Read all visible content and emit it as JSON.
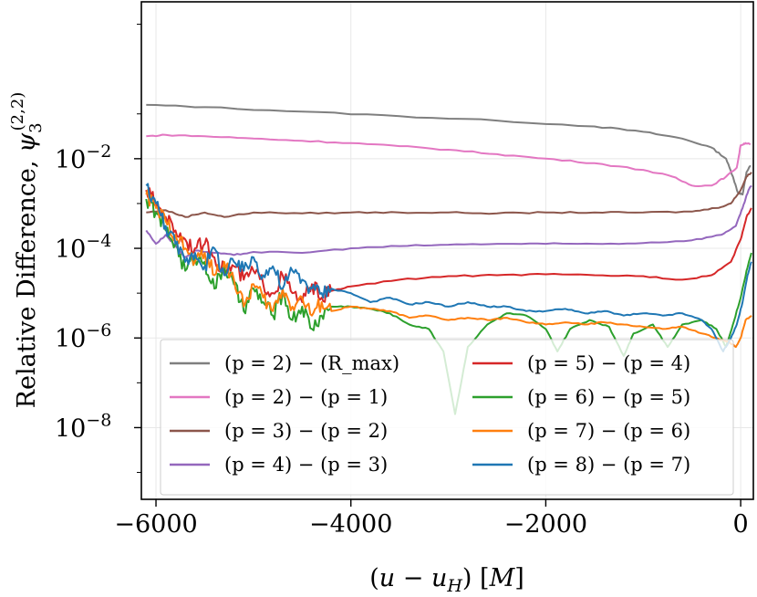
{
  "chart_data": {
    "type": "line",
    "title": "",
    "xlabel": "(u − u_H) [M]",
    "ylabel": "Relative Difference, ψ₃^(2,2)",
    "xlim": [
      -6150,
      130
    ],
    "ylim_log10": [
      -9.6,
      1.5
    ],
    "yscale": "log",
    "grid": true,
    "legend_position": "lower-center",
    "legend_columns": 2,
    "x_ticks": [
      {
        "value": -6000,
        "label": "−6000"
      },
      {
        "value": -4000,
        "label": "−4000"
      },
      {
        "value": -2000,
        "label": "−2000"
      },
      {
        "value": 0,
        "label": "0"
      }
    ],
    "y_ticks": [
      {
        "exp": -2,
        "base": "10",
        "sup": "−2"
      },
      {
        "exp": -4,
        "base": "10",
        "sup": "−4"
      },
      {
        "exp": -6,
        "base": "10",
        "sup": "−6"
      },
      {
        "exp": -8,
        "base": "10",
        "sup": "−8"
      }
    ],
    "series": [
      {
        "name": "(p = 2) − (R_max)",
        "color": "#7f7f7f",
        "points": [
          [
            -6100,
            -0.8
          ],
          [
            -5500,
            -0.85
          ],
          [
            -4500,
            -0.95
          ],
          [
            -3500,
            -1.05
          ],
          [
            -2500,
            -1.15
          ],
          [
            -1500,
            -1.28
          ],
          [
            -1000,
            -1.4
          ],
          [
            -600,
            -1.55
          ],
          [
            -300,
            -1.75
          ],
          [
            -150,
            -2.0
          ],
          [
            -80,
            -2.4
          ],
          [
            -30,
            -2.75
          ],
          [
            20,
            -2.8
          ],
          [
            60,
            -2.3
          ],
          [
            100,
            -2.15
          ]
        ]
      },
      {
        "name": "(p = 2) − (p = 1)",
        "color": "#e377c2",
        "points": [
          [
            -6100,
            -1.5
          ],
          [
            -5900,
            -1.47
          ],
          [
            -5500,
            -1.5
          ],
          [
            -5000,
            -1.55
          ],
          [
            -4500,
            -1.6
          ],
          [
            -4000,
            -1.65
          ],
          [
            -3500,
            -1.72
          ],
          [
            -3000,
            -1.8
          ],
          [
            -2500,
            -1.9
          ],
          [
            -2000,
            -2.0
          ],
          [
            -1500,
            -2.1
          ],
          [
            -1000,
            -2.25
          ],
          [
            -700,
            -2.4
          ],
          [
            -500,
            -2.6
          ],
          [
            -300,
            -2.6
          ],
          [
            -150,
            -2.4
          ],
          [
            -40,
            -2.2
          ],
          [
            0,
            -1.7
          ],
          [
            50,
            -1.65
          ],
          [
            100,
            -1.68
          ]
        ]
      },
      {
        "name": "(p = 3) − (p = 2)",
        "color": "#8c564b",
        "points": [
          [
            -6100,
            -3.2
          ],
          [
            -5900,
            -3.15
          ],
          [
            -5700,
            -3.3
          ],
          [
            -5500,
            -3.2
          ],
          [
            -5300,
            -3.3
          ],
          [
            -5000,
            -3.2
          ],
          [
            -4500,
            -3.22
          ],
          [
            -4000,
            -3.2
          ],
          [
            -3500,
            -3.2
          ],
          [
            -3000,
            -3.2
          ],
          [
            -2500,
            -3.22
          ],
          [
            -2000,
            -3.2
          ],
          [
            -1500,
            -3.2
          ],
          [
            -1000,
            -3.2
          ],
          [
            -500,
            -3.18
          ],
          [
            -250,
            -3.1
          ],
          [
            -100,
            -3.0
          ],
          [
            0,
            -2.7
          ],
          [
            60,
            -2.4
          ],
          [
            110,
            -2.3
          ]
        ]
      },
      {
        "name": "(p = 4) − (p = 3)",
        "color": "#9467bd",
        "points": [
          [
            -6100,
            -3.6
          ],
          [
            -6000,
            -3.9
          ],
          [
            -5900,
            -3.7
          ],
          [
            -5800,
            -3.95
          ],
          [
            -5700,
            -4.2
          ],
          [
            -5600,
            -4.05
          ],
          [
            -5400,
            -4.1
          ],
          [
            -5200,
            -4.15
          ],
          [
            -5000,
            -4.08
          ],
          [
            -4500,
            -4.1
          ],
          [
            -4000,
            -4.0
          ],
          [
            -3500,
            -3.95
          ],
          [
            -3000,
            -3.92
          ],
          [
            -2500,
            -3.9
          ],
          [
            -2000,
            -3.9
          ],
          [
            -1500,
            -3.9
          ],
          [
            -1000,
            -3.88
          ],
          [
            -500,
            -3.82
          ],
          [
            -200,
            -3.7
          ],
          [
            -50,
            -3.5
          ],
          [
            20,
            -3.1
          ],
          [
            80,
            -2.7
          ],
          [
            110,
            -2.6
          ]
        ]
      },
      {
        "name": "(p = 5) − (p = 4)",
        "color": "#d62728",
        "points": [
          [
            -6100,
            -2.7
          ],
          [
            -6000,
            -3.0
          ],
          [
            -5900,
            -3.3
          ],
          [
            -5800,
            -3.6
          ],
          [
            -5700,
            -3.8
          ],
          [
            -5600,
            -4.0
          ],
          [
            -5500,
            -3.9
          ],
          [
            -5400,
            -4.2
          ],
          [
            -5300,
            -4.5
          ],
          [
            -5200,
            -4.4
          ],
          [
            -5100,
            -4.7
          ],
          [
            -5000,
            -4.5
          ],
          [
            -4900,
            -4.8
          ],
          [
            -4800,
            -5.0
          ],
          [
            -4700,
            -4.6
          ],
          [
            -4600,
            -5.0
          ],
          [
            -4500,
            -5.2
          ],
          [
            -4400,
            -4.8
          ],
          [
            -4300,
            -5.1
          ],
          [
            -4200,
            -4.95
          ],
          [
            -4000,
            -4.85
          ],
          [
            -3500,
            -4.7
          ],
          [
            -3000,
            -4.62
          ],
          [
            -2500,
            -4.6
          ],
          [
            -2000,
            -4.58
          ],
          [
            -1500,
            -4.6
          ],
          [
            -1000,
            -4.62
          ],
          [
            -600,
            -4.7
          ],
          [
            -300,
            -4.6
          ],
          [
            -100,
            -4.3
          ],
          [
            0,
            -3.8
          ],
          [
            60,
            -3.3
          ],
          [
            110,
            -3.1
          ]
        ]
      },
      {
        "name": "(p = 6) − (p = 5)",
        "color": "#2ca02c",
        "points": [
          [
            -6100,
            -2.9
          ],
          [
            -6000,
            -3.2
          ],
          [
            -5900,
            -3.6
          ],
          [
            -5800,
            -3.9
          ],
          [
            -5700,
            -4.5
          ],
          [
            -5600,
            -4.2
          ],
          [
            -5500,
            -4.3
          ],
          [
            -5400,
            -4.9
          ],
          [
            -5300,
            -4.4
          ],
          [
            -5200,
            -4.8
          ],
          [
            -5100,
            -5.4
          ],
          [
            -5000,
            -4.9
          ],
          [
            -4900,
            -5.2
          ],
          [
            -4800,
            -5.5
          ],
          [
            -4700,
            -5.0
          ],
          [
            -4600,
            -5.6
          ],
          [
            -4500,
            -5.3
          ],
          [
            -4400,
            -5.8
          ],
          [
            -4300,
            -5.5
          ],
          [
            -4200,
            -5.3
          ],
          [
            -4000,
            -5.3
          ],
          [
            -3800,
            -5.35
          ],
          [
            -3600,
            -5.45
          ],
          [
            -3400,
            -5.7
          ],
          [
            -3200,
            -5.8
          ],
          [
            -3050,
            -6.3
          ],
          [
            -2930,
            -7.7
          ],
          [
            -2800,
            -6.2
          ],
          [
            -2600,
            -5.7
          ],
          [
            -2400,
            -5.45
          ],
          [
            -2200,
            -5.5
          ],
          [
            -2000,
            -5.8
          ],
          [
            -1880,
            -6.3
          ],
          [
            -1750,
            -5.8
          ],
          [
            -1550,
            -5.6
          ],
          [
            -1350,
            -5.75
          ],
          [
            -1200,
            -6.4
          ],
          [
            -1100,
            -5.9
          ],
          [
            -900,
            -5.7
          ],
          [
            -750,
            -6.2
          ],
          [
            -600,
            -5.7
          ],
          [
            -400,
            -5.6
          ],
          [
            -250,
            -5.8
          ],
          [
            -150,
            -6.2
          ],
          [
            -80,
            -5.7
          ],
          [
            0,
            -5.1
          ],
          [
            60,
            -4.5
          ],
          [
            110,
            -4.1
          ]
        ]
      },
      {
        "name": "(p = 7) − (p = 6)",
        "color": "#ff7f0e",
        "points": [
          [
            -6100,
            -2.8
          ],
          [
            -6000,
            -3.1
          ],
          [
            -5900,
            -3.4
          ],
          [
            -5800,
            -3.7
          ],
          [
            -5700,
            -4.0
          ],
          [
            -5600,
            -4.3
          ],
          [
            -5500,
            -4.1
          ],
          [
            -5400,
            -4.6
          ],
          [
            -5300,
            -4.3
          ],
          [
            -5200,
            -4.7
          ],
          [
            -5100,
            -5.3
          ],
          [
            -5000,
            -4.8
          ],
          [
            -4900,
            -5.1
          ],
          [
            -4800,
            -5.4
          ],
          [
            -4700,
            -4.9
          ],
          [
            -4600,
            -5.3
          ],
          [
            -4500,
            -5.1
          ],
          [
            -4400,
            -5.5
          ],
          [
            -4300,
            -5.2
          ],
          [
            -4200,
            -5.4
          ],
          [
            -4000,
            -5.3
          ],
          [
            -3800,
            -5.35
          ],
          [
            -3600,
            -5.4
          ],
          [
            -3400,
            -5.55
          ],
          [
            -3200,
            -5.5
          ],
          [
            -3000,
            -5.6
          ],
          [
            -2800,
            -5.55
          ],
          [
            -2600,
            -5.6
          ],
          [
            -2400,
            -5.55
          ],
          [
            -2200,
            -5.65
          ],
          [
            -2000,
            -5.7
          ],
          [
            -1800,
            -5.65
          ],
          [
            -1600,
            -5.7
          ],
          [
            -1400,
            -5.65
          ],
          [
            -1200,
            -5.7
          ],
          [
            -1000,
            -5.75
          ],
          [
            -800,
            -5.8
          ],
          [
            -600,
            -5.75
          ],
          [
            -400,
            -5.9
          ],
          [
            -250,
            -6.0
          ],
          [
            -120,
            -6.1
          ],
          [
            -50,
            -6.2
          ],
          [
            0,
            -6.0
          ],
          [
            50,
            -5.6
          ],
          [
            110,
            -5.5
          ]
        ]
      },
      {
        "name": "(p = 8) − (p = 7)",
        "color": "#1f77b4",
        "points": [
          [
            -6100,
            -2.6
          ],
          [
            -6000,
            -3.0
          ],
          [
            -5900,
            -3.5
          ],
          [
            -5800,
            -3.9
          ],
          [
            -5700,
            -4.3
          ],
          [
            -5600,
            -4.1
          ],
          [
            -5500,
            -4.4
          ],
          [
            -5400,
            -4.0
          ],
          [
            -5300,
            -4.6
          ],
          [
            -5200,
            -4.3
          ],
          [
            -5100,
            -4.5
          ],
          [
            -5000,
            -4.2
          ],
          [
            -4900,
            -4.6
          ],
          [
            -4800,
            -4.4
          ],
          [
            -4700,
            -4.9
          ],
          [
            -4600,
            -4.5
          ],
          [
            -4500,
            -4.7
          ],
          [
            -4400,
            -4.9
          ],
          [
            -4300,
            -5.0
          ],
          [
            -4200,
            -4.9
          ],
          [
            -4000,
            -5.0
          ],
          [
            -3800,
            -5.2
          ],
          [
            -3600,
            -5.1
          ],
          [
            -3400,
            -5.25
          ],
          [
            -3200,
            -5.2
          ],
          [
            -3000,
            -5.3
          ],
          [
            -2800,
            -5.2
          ],
          [
            -2600,
            -5.3
          ],
          [
            -2400,
            -5.3
          ],
          [
            -2200,
            -5.4
          ],
          [
            -2000,
            -5.4
          ],
          [
            -1800,
            -5.35
          ],
          [
            -1600,
            -5.45
          ],
          [
            -1400,
            -5.4
          ],
          [
            -1200,
            -5.5
          ],
          [
            -1000,
            -5.45
          ],
          [
            -800,
            -5.5
          ],
          [
            -600,
            -5.45
          ],
          [
            -400,
            -5.6
          ],
          [
            -300,
            -5.8
          ],
          [
            -180,
            -6.3
          ],
          [
            -100,
            -6.0
          ],
          [
            -40,
            -5.7
          ],
          [
            20,
            -5.2
          ],
          [
            70,
            -4.6
          ],
          [
            110,
            -4.3
          ]
        ]
      }
    ]
  }
}
